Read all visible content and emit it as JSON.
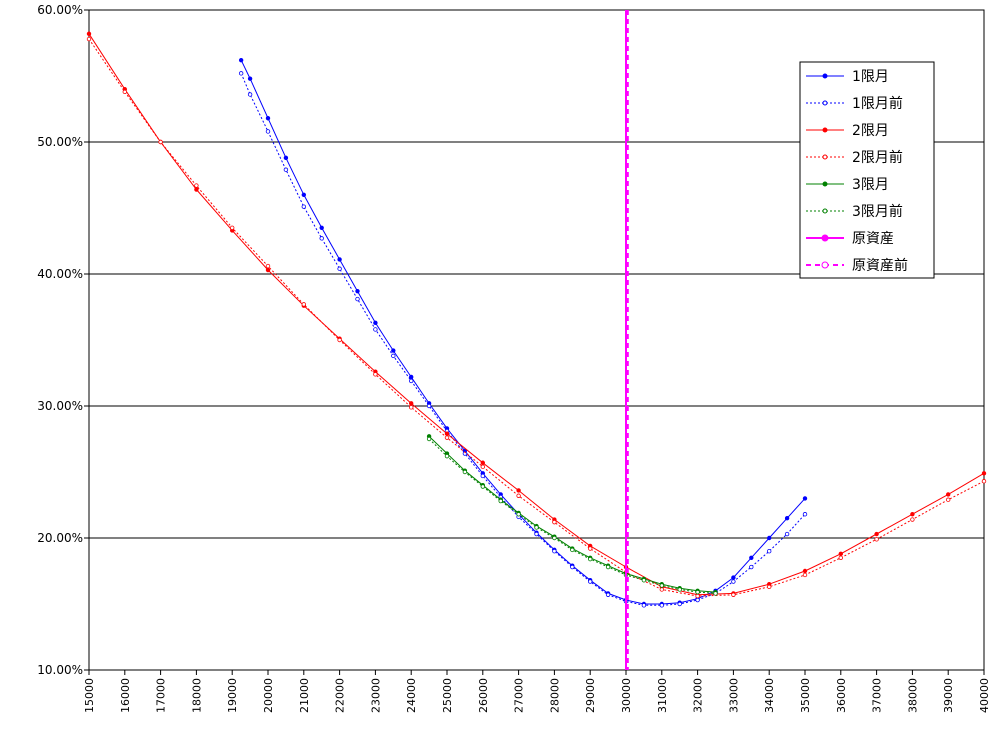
{
  "chart_data": {
    "type": "line",
    "xlim": [
      15000,
      40000
    ],
    "ylim": [
      10,
      60
    ],
    "x_ticks": [
      "15000",
      "16000",
      "17000",
      "18000",
      "19000",
      "20000",
      "21000",
      "22000",
      "23000",
      "24000",
      "25000",
      "26000",
      "27000",
      "28000",
      "29000",
      "30000",
      "31000",
      "32000",
      "33000",
      "34000",
      "35000",
      "36000",
      "37000",
      "38000",
      "39000",
      "40000"
    ],
    "y_ticks": [
      "10.00%",
      "20.00%",
      "30.00%",
      "40.00%",
      "50.00%",
      "60.00%"
    ],
    "grid": "horizontal",
    "legend_position": "top-right",
    "series": [
      {
        "name": "1限月",
        "color": "#0000ff",
        "style": "solid-filled-markers",
        "x": [
          19250,
          19500,
          20000,
          20500,
          21000,
          21500,
          22000,
          22500,
          23000,
          23500,
          24000,
          24500,
          25000,
          25500,
          26000,
          26500,
          27000,
          27500,
          28000,
          28500,
          29000,
          29500,
          30000,
          30500,
          31000,
          31500,
          32000,
          32500,
          33000,
          33500,
          34000,
          34500,
          35000
        ],
        "y": [
          56.2,
          54.8,
          51.8,
          48.8,
          46.0,
          43.5,
          41.1,
          38.7,
          36.3,
          34.2,
          32.2,
          30.2,
          28.3,
          26.6,
          24.9,
          23.3,
          21.8,
          20.4,
          19.1,
          17.9,
          16.8,
          15.8,
          15.3,
          15.0,
          15.0,
          15.1,
          15.4,
          16.0,
          17.0,
          18.5,
          20.0,
          21.5,
          23.0
        ]
      },
      {
        "name": "1限月前",
        "color": "#0000ff",
        "style": "dashed-hollow-markers",
        "x": [
          19250,
          19500,
          20000,
          20500,
          21000,
          21500,
          22000,
          22500,
          23000,
          23500,
          24000,
          24500,
          25000,
          25500,
          26000,
          26500,
          27000,
          27500,
          28000,
          28500,
          29000,
          29500,
          30000,
          30500,
          31000,
          31500,
          32000,
          32500,
          33000,
          33500,
          34000,
          34500,
          35000
        ],
        "y": [
          55.2,
          53.6,
          50.8,
          47.9,
          45.1,
          42.7,
          40.4,
          38.1,
          35.8,
          33.8,
          31.9,
          30.0,
          28.1,
          26.4,
          24.7,
          23.1,
          21.6,
          20.3,
          19.0,
          17.8,
          16.7,
          15.7,
          15.2,
          14.9,
          14.9,
          15.0,
          15.3,
          15.8,
          16.7,
          17.8,
          19.0,
          20.3,
          21.8
        ]
      },
      {
        "name": "2限月",
        "color": "#ff0000",
        "style": "solid-filled-markers",
        "x": [
          15000,
          16000,
          17000,
          18000,
          19000,
          20000,
          21000,
          22000,
          23000,
          24000,
          25000,
          26000,
          27000,
          28000,
          29000,
          30000,
          31000,
          32000,
          33000,
          34000,
          35000,
          36000,
          37000,
          38000,
          39000,
          40000
        ],
        "y": [
          58.2,
          54.0,
          50.0,
          46.4,
          43.3,
          40.3,
          37.6,
          35.1,
          32.6,
          30.2,
          27.9,
          25.7,
          23.6,
          21.4,
          19.4,
          17.8,
          16.3,
          15.7,
          15.8,
          16.5,
          17.5,
          18.8,
          20.3,
          21.8,
          23.3,
          24.9
        ]
      },
      {
        "name": "2限月前",
        "color": "#ff0000",
        "style": "dashed-hollow-markers",
        "x": [
          15000,
          16000,
          17000,
          18000,
          19000,
          20000,
          21000,
          22000,
          23000,
          24000,
          25000,
          26000,
          27000,
          28000,
          29000,
          30000,
          31000,
          32000,
          33000,
          34000,
          35000,
          36000,
          37000,
          38000,
          39000,
          40000
        ],
        "y": [
          57.8,
          53.8,
          50.0,
          46.7,
          43.5,
          40.6,
          37.7,
          35.0,
          32.4,
          29.9,
          27.6,
          25.4,
          23.2,
          21.2,
          19.2,
          17.4,
          16.1,
          15.6,
          15.7,
          16.3,
          17.2,
          18.5,
          19.9,
          21.4,
          22.9,
          24.3
        ]
      },
      {
        "name": "3限月",
        "color": "#008000",
        "style": "solid-filled-markers",
        "x": [
          24500,
          25000,
          25500,
          26000,
          26500,
          27000,
          27500,
          28000,
          28500,
          29000,
          29500,
          30000,
          30500,
          31000,
          31500,
          32000,
          32500
        ],
        "y": [
          27.7,
          26.4,
          25.1,
          24.0,
          22.9,
          21.9,
          20.9,
          20.1,
          19.2,
          18.5,
          17.9,
          17.3,
          16.9,
          16.5,
          16.2,
          16.0,
          15.9
        ]
      },
      {
        "name": "3限月前",
        "color": "#008000",
        "style": "dashed-hollow-markers",
        "x": [
          24500,
          25000,
          25500,
          26000,
          26500,
          27000,
          27500,
          28000,
          28500,
          29000,
          29500,
          30000,
          30500,
          31000,
          31500,
          32000,
          32500
        ],
        "y": [
          27.5,
          26.2,
          25.0,
          23.9,
          22.8,
          21.8,
          20.8,
          20.0,
          19.1,
          18.4,
          17.8,
          17.2,
          16.8,
          16.4,
          16.1,
          15.9,
          15.8
        ]
      },
      {
        "name": "原資産",
        "color": "#ff00ff",
        "style": "vertical-line-solid",
        "x_value": 30000
      },
      {
        "name": "原資産前",
        "color": "#ff00ff",
        "style": "vertical-line-dashed",
        "x_value": 30050
      }
    ]
  }
}
